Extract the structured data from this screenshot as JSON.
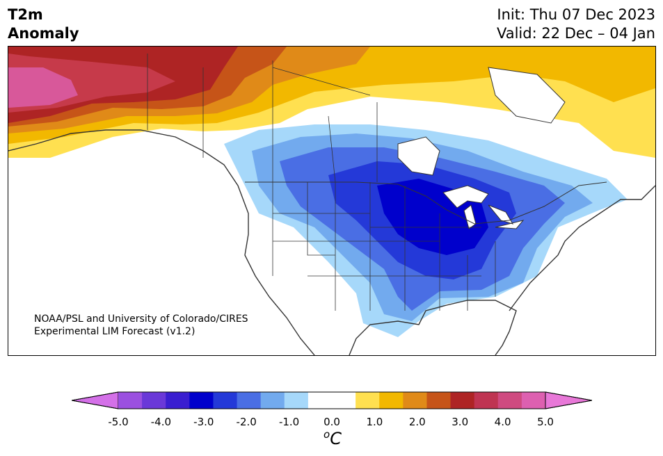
{
  "title": {
    "line1": "T2m",
    "line2": "Anomaly",
    "init": "Init: Thu 07 Dec 2023",
    "valid": "Valid: 22 Dec – 04 Jan"
  },
  "credit": {
    "line1": "NOAA/PSL and University of Colorado/CIRES",
    "line2": "Experimental LIM Forecast (v1.2)"
  },
  "colorbar": {
    "ticks": [
      "-5.0",
      "-4.0",
      "-3.0",
      "-2.0",
      "-1.0",
      "0.0",
      "1.0",
      "2.0",
      "3.0",
      "4.0",
      "5.0"
    ],
    "unit_sup": "o",
    "unit": "C",
    "colors": [
      "#d470e8",
      "#9b50e0",
      "#6a38d8",
      "#3a1ed0",
      "#0000cc",
      "#2439d8",
      "#4a6ee4",
      "#72aaee",
      "#a6d8fa",
      "#ffffff",
      "#ffffff",
      "#ffe050",
      "#f2b800",
      "#e08a18",
      "#c65418",
      "#ae2424",
      "#bf3452",
      "#cf4a80",
      "#dd60b0",
      "#e878d8"
    ]
  },
  "map": {
    "region": "North America",
    "colors": {
      "deep_red": "#ae2424",
      "red": "#c63a4a",
      "magenta": "#d8589a",
      "orange_red": "#c65418",
      "orange": "#e08a18",
      "gold": "#f2b800",
      "yellow": "#ffe050",
      "light_blue": "#a6d8fa",
      "mid_blue": "#72aaee",
      "blue": "#4a6ee4",
      "royal_blue": "#2439d8",
      "dark_blue": "#0000cc",
      "border": "#333333"
    }
  }
}
